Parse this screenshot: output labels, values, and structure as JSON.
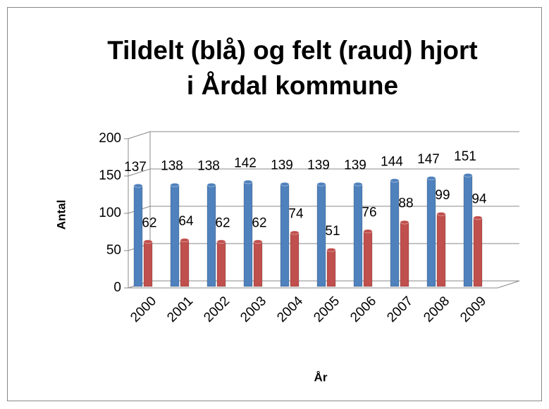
{
  "chart_data": {
    "type": "bar",
    "title": [
      "Tildelt (blå) og felt (raud) hjort",
      "i Årdal kommune"
    ],
    "x_label": "År",
    "y_label": "Antal",
    "categories": [
      "2000",
      "2001",
      "2002",
      "2003",
      "2004",
      "2005",
      "2006",
      "2007",
      "2008",
      "2009"
    ],
    "series": [
      {
        "color": "#4f81bd",
        "values": [
          137,
          138,
          138,
          142,
          139,
          139,
          139,
          144,
          147,
          151
        ]
      },
      {
        "color": "#c0504d",
        "values": [
          62,
          64,
          62,
          62,
          74,
          51,
          76,
          88,
          99,
          94
        ]
      }
    ],
    "ylim": [
      0,
      200
    ],
    "yticks": [
      0,
      50,
      100,
      150,
      200
    ],
    "grid": true
  }
}
